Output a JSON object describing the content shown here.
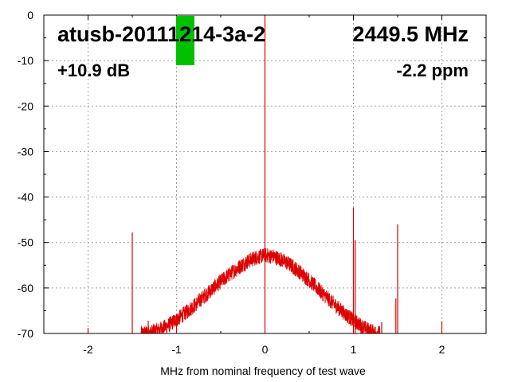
{
  "chart_data": {
    "type": "line",
    "title": "",
    "xlabel": "MHz from nominal frequency of test wave",
    "ylabel": "",
    "xlim": [
      -2.5,
      2.5
    ],
    "ylim": [
      -70,
      0
    ],
    "x_ticks": [
      -2,
      -1,
      0,
      1,
      2
    ],
    "x_tick_labels": [
      "-2",
      "-1",
      "0",
      "1",
      "2"
    ],
    "y_ticks": [
      0,
      -10,
      -20,
      -30,
      -40,
      -50,
      -60,
      -70
    ],
    "y_tick_labels": [
      "0",
      "-10",
      "-20",
      "-30",
      "-40",
      "-50",
      "-60",
      "-70"
    ],
    "grid": true,
    "line_color": "#dd0000",
    "series": [
      {
        "noise_floor": {
          "x": [
            -1.4,
            -1.3,
            -1.2,
            -1.1,
            -1.0,
            -0.9,
            -0.8,
            -0.7,
            -0.6,
            -0.5,
            -0.4,
            -0.3,
            -0.2,
            -0.1,
            0.0,
            0.1,
            0.2,
            0.3,
            0.4,
            0.5,
            0.6,
            0.7,
            0.8,
            0.9,
            1.0,
            1.1,
            1.2,
            1.3
          ],
          "y": [
            -70.0,
            -69.8,
            -69.2,
            -68.3,
            -67.0,
            -65.5,
            -63.9,
            -62.1,
            -60.3,
            -58.6,
            -57.0,
            -55.5,
            -54.2,
            -53.3,
            -52.8,
            -53.1,
            -53.9,
            -55.1,
            -56.6,
            -58.3,
            -60.2,
            -62.1,
            -63.9,
            -65.6,
            -67.1,
            -68.5,
            -69.5,
            -70.0
          ]
        },
        "spikes": [
          {
            "x": -2.0,
            "y": -68.8
          },
          {
            "x": -1.5,
            "y": -47.8
          },
          {
            "x": -1.32,
            "y": -67.2
          },
          {
            "x": -1.0,
            "y": -65.8
          },
          {
            "x": 0.0,
            "y": 0.0
          },
          {
            "x": 1.0,
            "y": -42.3
          },
          {
            "x": 1.02,
            "y": -49.5
          },
          {
            "x": 1.32,
            "y": -67.5
          },
          {
            "x": 1.48,
            "y": -62.3
          },
          {
            "x": 1.5,
            "y": -46.0
          },
          {
            "x": 2.0,
            "y": -67.3
          }
        ]
      }
    ]
  },
  "overlay": {
    "device_label": "atusb-20111214-3a-2",
    "frequency_label": "2449.5 MHz",
    "power_label": "+10.9 dB",
    "ppm_label": "-2.2 ppm",
    "level_bar": {
      "level_db": -11,
      "color": "#00c000"
    }
  }
}
